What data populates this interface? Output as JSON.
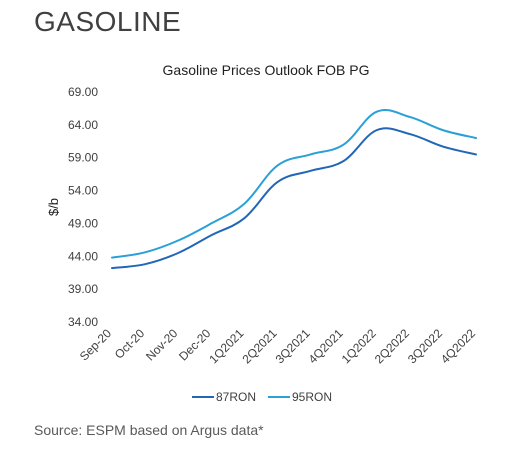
{
  "page": {
    "heading": "GASOLINE",
    "source": "Source: ESPM based on Argus data*"
  },
  "chart_data": {
    "type": "line",
    "title": "Gasoline Prices Outlook FOB PG",
    "xlabel": "",
    "ylabel": "$/b",
    "ylim": [
      34,
      69
    ],
    "yticks": [
      "34.00",
      "39.00",
      "44.00",
      "49.00",
      "54.00",
      "59.00",
      "64.00",
      "69.00"
    ],
    "grid": false,
    "legend_position": "bottom",
    "categories": [
      "Sep-20",
      "Oct-20",
      "Nov-20",
      "Dec-20",
      "1Q2021",
      "2Q2021",
      "3Q2021",
      "4Q2021",
      "1Q2022",
      "2Q2022",
      "3Q2022",
      "4Q2022"
    ],
    "series": [
      {
        "name": "87RON",
        "color": "#2166b7",
        "values": [
          42.2,
          42.8,
          44.5,
          47.2,
          49.8,
          55.3,
          57.0,
          58.5,
          63.2,
          62.6,
          60.7,
          59.5
        ]
      },
      {
        "name": "95RON",
        "color": "#2aa0d6",
        "values": [
          43.8,
          44.6,
          46.4,
          49.0,
          52.0,
          57.8,
          59.5,
          61.0,
          66.0,
          65.2,
          63.2,
          62.0
        ]
      }
    ]
  }
}
